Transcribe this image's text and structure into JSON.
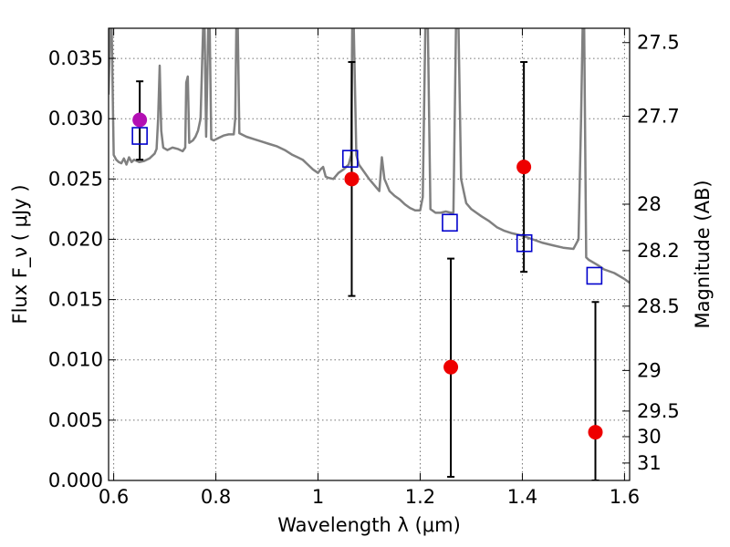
{
  "chart_data": {
    "type": "scatter",
    "xlabel": "Wavelength  λ (μm)",
    "ylabel": "Flux  F_ν  ( μJy )",
    "y2label": "Magnitude (AB)",
    "xlim": [
      0.59,
      1.61
    ],
    "ylim": [
      0.0,
      0.0375
    ],
    "x_ticks": [
      {
        "value": 0.6,
        "label": "0.6"
      },
      {
        "value": 0.8,
        "label": "0.8"
      },
      {
        "value": 1.0,
        "label": "1"
      },
      {
        "value": 1.2,
        "label": "1.2"
      },
      {
        "value": 1.4,
        "label": "1.4"
      },
      {
        "value": 1.6,
        "label": "1.6"
      }
    ],
    "y_ticks": [
      {
        "value": 0.0,
        "label": "0.000"
      },
      {
        "value": 0.005,
        "label": "0.005"
      },
      {
        "value": 0.01,
        "label": "0.010"
      },
      {
        "value": 0.015,
        "label": "0.015"
      },
      {
        "value": 0.02,
        "label": "0.020"
      },
      {
        "value": 0.025,
        "label": "0.025"
      },
      {
        "value": 0.03,
        "label": "0.030"
      },
      {
        "value": 0.035,
        "label": "0.035"
      }
    ],
    "y2_ticks": [
      {
        "value": 27.5,
        "label": "27.5"
      },
      {
        "value": 27.7,
        "label": "27.7"
      },
      {
        "value": 28.0,
        "label": "28"
      },
      {
        "value": 28.2,
        "label": "28.2"
      },
      {
        "value": 28.5,
        "label": "28.5"
      },
      {
        "value": 29.0,
        "label": "29"
      },
      {
        "value": 29.5,
        "label": "29.5"
      },
      {
        "value": 30.0,
        "label": "30"
      },
      {
        "value": 31.0,
        "label": "31"
      }
    ],
    "grid": true,
    "series": [
      {
        "kind": "line",
        "color": "#808080",
        "points": [
          [
            0.59,
            0.032
          ],
          [
            0.593,
            0.0375
          ],
          [
            0.596,
            0.0375
          ],
          [
            0.6,
            0.027
          ],
          [
            0.605,
            0.0266
          ],
          [
            0.61,
            0.0264
          ],
          [
            0.615,
            0.0263
          ],
          [
            0.62,
            0.0267
          ],
          [
            0.625,
            0.0262
          ],
          [
            0.63,
            0.0268
          ],
          [
            0.635,
            0.0264
          ],
          [
            0.64,
            0.0266
          ],
          [
            0.65,
            0.0264
          ],
          [
            0.66,
            0.0265
          ],
          [
            0.67,
            0.0267
          ],
          [
            0.68,
            0.0271
          ],
          [
            0.684,
            0.0275
          ],
          [
            0.687,
            0.03
          ],
          [
            0.69,
            0.0344
          ],
          [
            0.693,
            0.029
          ],
          [
            0.697,
            0.0276
          ],
          [
            0.705,
            0.0274
          ],
          [
            0.715,
            0.0276
          ],
          [
            0.725,
            0.0275
          ],
          [
            0.735,
            0.0273
          ],
          [
            0.74,
            0.0276
          ],
          [
            0.742,
            0.033
          ],
          [
            0.745,
            0.0335
          ],
          [
            0.748,
            0.028
          ],
          [
            0.755,
            0.0282
          ],
          [
            0.76,
            0.0285
          ],
          [
            0.765,
            0.029
          ],
          [
            0.77,
            0.03
          ],
          [
            0.775,
            0.0375
          ],
          [
            0.778,
            0.0375
          ],
          [
            0.781,
            0.0285
          ],
          [
            0.785,
            0.0375
          ],
          [
            0.788,
            0.0375
          ],
          [
            0.791,
            0.0283
          ],
          [
            0.796,
            0.0282
          ],
          [
            0.805,
            0.0284
          ],
          [
            0.815,
            0.0286
          ],
          [
            0.825,
            0.0287
          ],
          [
            0.835,
            0.0287
          ],
          [
            0.838,
            0.03
          ],
          [
            0.84,
            0.0375
          ],
          [
            0.843,
            0.0375
          ],
          [
            0.846,
            0.0288
          ],
          [
            0.86,
            0.0285
          ],
          [
            0.875,
            0.0283
          ],
          [
            0.89,
            0.0281
          ],
          [
            0.905,
            0.0279
          ],
          [
            0.92,
            0.0277
          ],
          [
            0.935,
            0.0274
          ],
          [
            0.95,
            0.027
          ],
          [
            0.96,
            0.0268
          ],
          [
            0.97,
            0.0266
          ],
          [
            0.98,
            0.0262
          ],
          [
            0.99,
            0.0258
          ],
          [
            1.0,
            0.0255
          ],
          [
            1.005,
            0.0258
          ],
          [
            1.01,
            0.026
          ],
          [
            1.015,
            0.0252
          ],
          [
            1.02,
            0.0251
          ],
          [
            1.03,
            0.025
          ],
          [
            1.04,
            0.0255
          ],
          [
            1.05,
            0.0258
          ],
          [
            1.06,
            0.0262
          ],
          [
            1.065,
            0.027
          ],
          [
            1.067,
            0.0375
          ],
          [
            1.07,
            0.0375
          ],
          [
            1.075,
            0.027
          ],
          [
            1.08,
            0.0262
          ],
          [
            1.09,
            0.0256
          ],
          [
            1.1,
            0.025
          ],
          [
            1.11,
            0.0245
          ],
          [
            1.12,
            0.024
          ],
          [
            1.125,
            0.0268
          ],
          [
            1.13,
            0.025
          ],
          [
            1.14,
            0.024
          ],
          [
            1.15,
            0.0236
          ],
          [
            1.16,
            0.0233
          ],
          [
            1.17,
            0.0229
          ],
          [
            1.18,
            0.0226
          ],
          [
            1.19,
            0.0224
          ],
          [
            1.2,
            0.0224
          ],
          [
            1.205,
            0.0235
          ],
          [
            1.21,
            0.0375
          ],
          [
            1.215,
            0.0375
          ],
          [
            1.22,
            0.0225
          ],
          [
            1.23,
            0.0222
          ],
          [
            1.24,
            0.0222
          ],
          [
            1.25,
            0.0223
          ],
          [
            1.26,
            0.0222
          ],
          [
            1.265,
            0.0222
          ],
          [
            1.27,
            0.0375
          ],
          [
            1.275,
            0.0375
          ],
          [
            1.28,
            0.025
          ],
          [
            1.285,
            0.024
          ],
          [
            1.29,
            0.023
          ],
          [
            1.3,
            0.0225
          ],
          [
            1.31,
            0.0222
          ],
          [
            1.32,
            0.0219
          ],
          [
            1.335,
            0.0215
          ],
          [
            1.35,
            0.021
          ],
          [
            1.365,
            0.0207
          ],
          [
            1.38,
            0.0205
          ],
          [
            1.4,
            0.0203
          ],
          [
            1.42,
            0.02
          ],
          [
            1.44,
            0.0197
          ],
          [
            1.46,
            0.0195
          ],
          [
            1.48,
            0.0193
          ],
          [
            1.5,
            0.0192
          ],
          [
            1.51,
            0.02
          ],
          [
            1.515,
            0.03
          ],
          [
            1.518,
            0.0375
          ],
          [
            1.521,
            0.0375
          ],
          [
            1.525,
            0.0185
          ],
          [
            1.53,
            0.0183
          ],
          [
            1.55,
            0.0178
          ],
          [
            1.56,
            0.0175
          ],
          [
            1.58,
            0.0172
          ],
          [
            1.6,
            0.0167
          ],
          [
            1.61,
            0.0164
          ]
        ]
      },
      {
        "kind": "squares",
        "color": "#0000cc",
        "points": [
          [
            0.651,
            0.0285
          ],
          [
            1.063,
            0.0266
          ],
          [
            1.258,
            0.0213
          ],
          [
            1.404,
            0.0196
          ],
          [
            1.541,
            0.0169
          ]
        ]
      },
      {
        "kind": "points-with-errorbars",
        "color": "#ee0000",
        "points": [
          {
            "x": 1.066,
            "y": 0.025,
            "lo": 0.0153,
            "hi": 0.0347
          },
          {
            "x": 1.26,
            "y": 0.0094,
            "lo": 0.0003,
            "hi": 0.0184
          },
          {
            "x": 1.403,
            "y": 0.026,
            "lo": 0.0173,
            "hi": 0.0347
          },
          {
            "x": 1.543,
            "y": 0.004,
            "lo": 0.0,
            "hi": 0.0148
          }
        ]
      },
      {
        "kind": "points-with-errorbars",
        "color": "#b30fb3",
        "points": [
          {
            "x": 0.651,
            "y": 0.0299,
            "lo": 0.0266,
            "hi": 0.0331
          }
        ]
      }
    ]
  }
}
